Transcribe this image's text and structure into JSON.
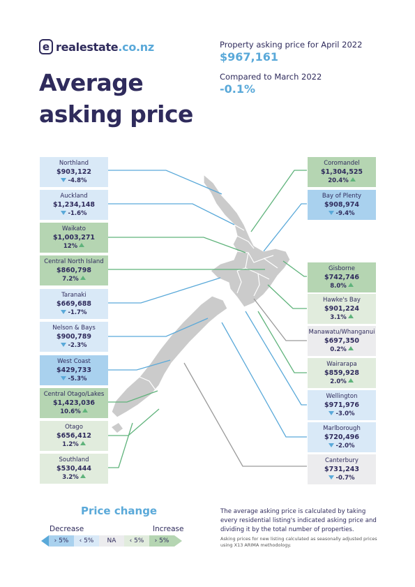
{
  "brand": {
    "mark": "e",
    "name": "realestate",
    "tld": ".co.nz"
  },
  "title_line1": "Average",
  "title_line2": "asking price",
  "stats": {
    "label1": "Property asking price for April 2022",
    "value1": "$967,161",
    "label2": "Compared to March 2022",
    "value2": "-0.1%"
  },
  "regions_left": [
    {
      "name": "Northland",
      "price": "$903,122",
      "change": "-4.8%",
      "dir": "down",
      "tone": "lightblue"
    },
    {
      "name": "Auckland",
      "price": "$1,234,148",
      "change": "-1.6%",
      "dir": "down",
      "tone": "lightblue"
    },
    {
      "name": "Waikato",
      "price": "$1,003,271",
      "change": "12%",
      "dir": "up",
      "tone": "green"
    },
    {
      "name": "Central North Island",
      "price": "$860,798",
      "change": "7.2%",
      "dir": "up",
      "tone": "green"
    },
    {
      "name": "Taranaki",
      "price": "$669,688",
      "change": "-1.7%",
      "dir": "down",
      "tone": "lightblue"
    },
    {
      "name": "Nelson & Bays",
      "price": "$900,789",
      "change": "-2.3%",
      "dir": "down",
      "tone": "lightblue"
    },
    {
      "name": "West Coast",
      "price": "$429,733",
      "change": "-5.3%",
      "dir": "down",
      "tone": "blue"
    },
    {
      "name": "Central Otago/Lakes",
      "price": "$1,423,036",
      "change": "10.6%",
      "dir": "up",
      "tone": "green"
    },
    {
      "name": "Otago",
      "price": "$656,412",
      "change": "1.2%",
      "dir": "up",
      "tone": "lightgreen"
    },
    {
      "name": "Southland",
      "price": "$530,444",
      "change": "3.2%",
      "dir": "up",
      "tone": "lightgreen"
    }
  ],
  "regions_right": [
    {
      "name": "Coromandel",
      "price": "$1,304,525",
      "change": "20.4%",
      "dir": "up",
      "tone": "green"
    },
    {
      "name": "Bay of Plenty",
      "price": "$908,974",
      "change": "-9.4%",
      "dir": "down",
      "tone": "blue"
    },
    {
      "name": "Gisborne",
      "price": "$742,746",
      "change": "8.0%",
      "dir": "up",
      "tone": "green"
    },
    {
      "name": "Hawke's Bay",
      "price": "$901,224",
      "change": "3.1%",
      "dir": "up",
      "tone": "lightgreen"
    },
    {
      "name": "Manawatu/Whanganui",
      "price": "$697,350",
      "change": "0.2%",
      "dir": "up",
      "tone": "grey"
    },
    {
      "name": "Wairarapa",
      "price": "$859,928",
      "change": "2.0%",
      "dir": "up",
      "tone": "lightgreen"
    },
    {
      "name": "Wellington",
      "price": "$971,976",
      "change": "-3.0%",
      "dir": "down",
      "tone": "lightblue"
    },
    {
      "name": "Marlborough",
      "price": "$720,496",
      "change": "-2.0%",
      "dir": "down",
      "tone": "lightblue"
    },
    {
      "name": "Canterbury",
      "price": "$731,243",
      "change": "-0.7%",
      "dir": "down",
      "tone": "grey"
    }
  ],
  "legend": {
    "title": "Price change",
    "decrease": "Decrease",
    "increase": "Increase",
    "segments": [
      "› 5%",
      "‹ 5%",
      "NA",
      "‹ 5%",
      "› 5%"
    ]
  },
  "note": {
    "main": "The average asking price is calculated by taking every residential listing's indicated asking price and dividing it by the total number of properties.",
    "small": "Asking prices for new listing calculated as seasonally adjusted prices using X13 ARIMA methodology."
  },
  "colors": {
    "navy": "#2f2b5c",
    "accent_blue": "#5aa9d9",
    "accent_green": "#5fb37b",
    "light_blue": "#d9e9f7",
    "blue": "#a9d1ee",
    "light_green": "#e1ecdd",
    "green": "#b5d5b2",
    "grey": "#ececee"
  }
}
